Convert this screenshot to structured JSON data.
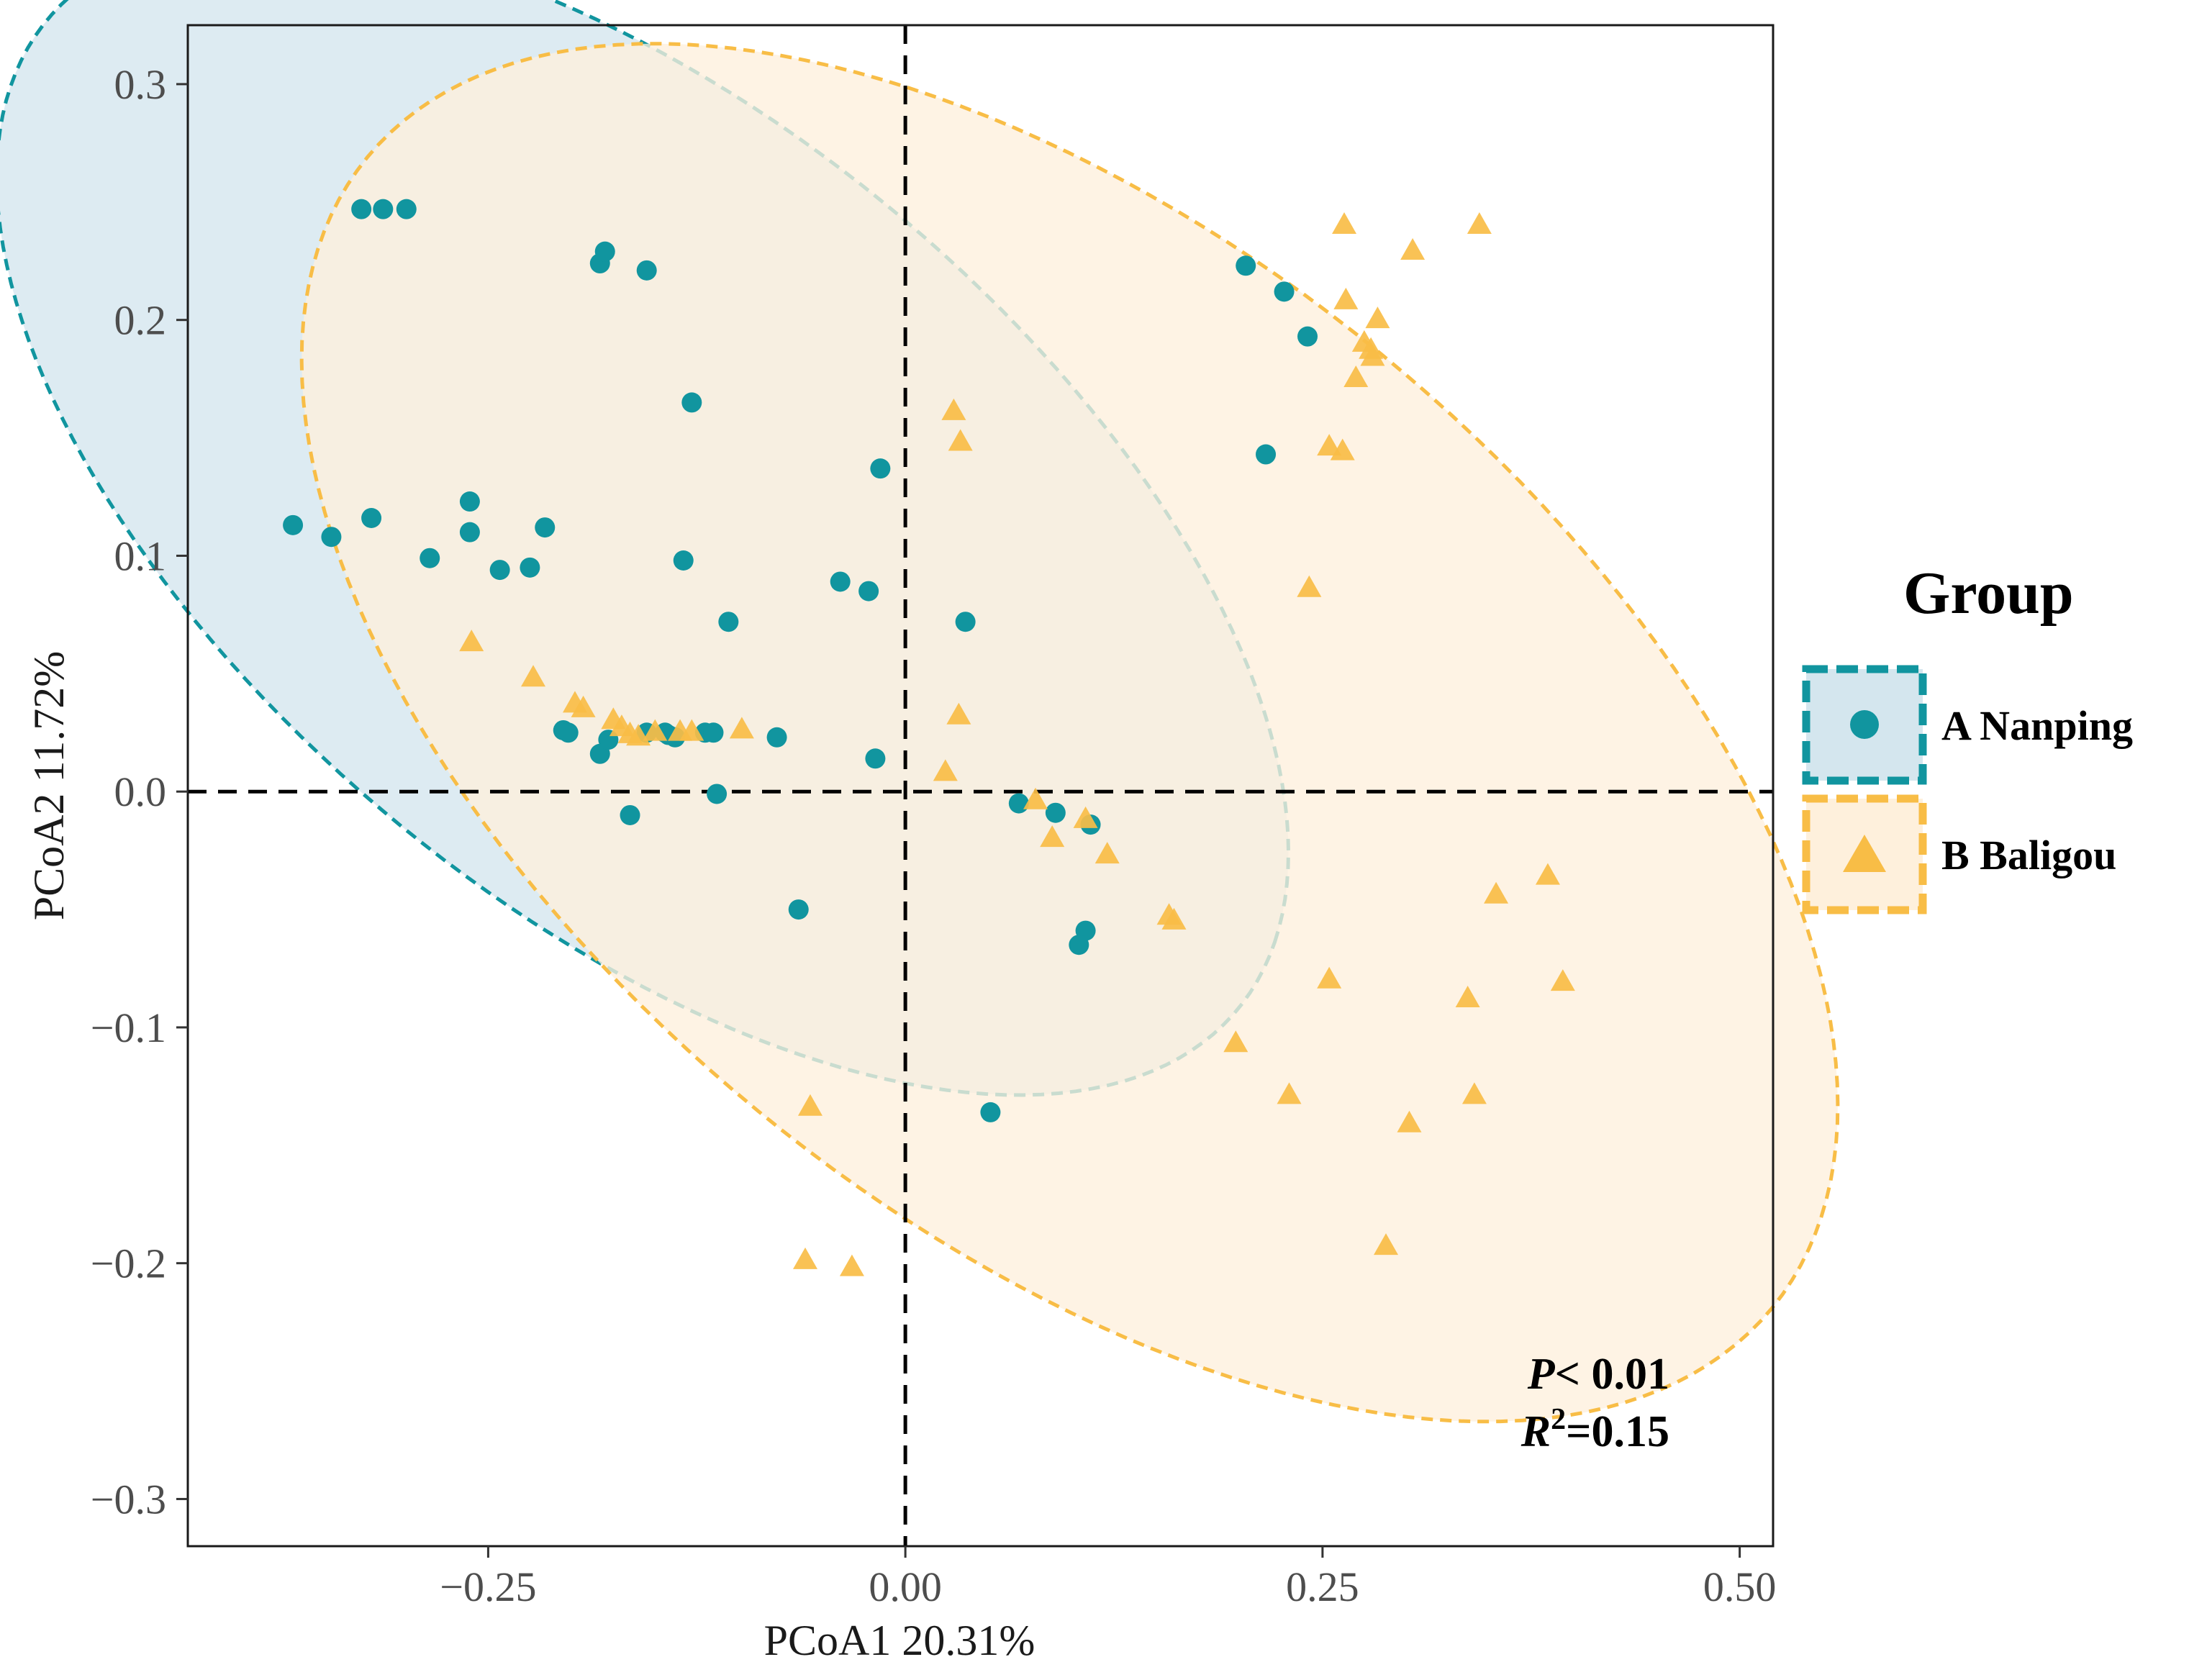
{
  "chart_data": {
    "type": "scatter",
    "title": "",
    "xlabel": "PCoA1 20.31%",
    "ylabel": "PCoA2 11.72%",
    "xlim": [
      -0.43,
      0.52
    ],
    "ylim": [
      -0.32,
      0.325
    ],
    "x_ticks": [
      -0.25,
      0.0,
      0.25,
      0.5
    ],
    "x_tick_labels": [
      "−0.25",
      "0.00",
      "0.25",
      "0.50"
    ],
    "y_ticks": [
      -0.3,
      -0.2,
      -0.1,
      0.0,
      0.1,
      0.2,
      0.3
    ],
    "y_tick_labels": [
      "−0.3",
      "−0.2",
      "−0.1",
      "0.0",
      "0.1",
      "0.2",
      "0.3"
    ],
    "grid": false,
    "reference_lines": {
      "x": 0,
      "y": 0,
      "style": "dashed"
    },
    "legend": {
      "title": "Group",
      "position": "right",
      "entries": [
        {
          "label": "A Nanping",
          "shape": "circle",
          "color": "#11959f"
        },
        {
          "label": "B Baligou",
          "shape": "triangle",
          "color": "#f8bd46"
        }
      ]
    },
    "annotations": {
      "p_prefix": "P",
      "p_suffix": "< 0.01",
      "r2_prefix": "R",
      "r2_exponent": "2",
      "r2_suffix": "=0.15"
    },
    "series": [
      {
        "name": "A Nanping",
        "shape": "circle",
        "color": "#11959f",
        "ellipse": {
          "cx": -0.1575,
          "cy": 0.1175,
          "rx": 0.42,
          "ry": 0.1845,
          "angle_deg": -25.6,
          "fill": "#d4e6ee",
          "stroke": "#11959f"
        },
        "points": [
          [
            -0.326,
            0.247
          ],
          [
            -0.313,
            0.247
          ],
          [
            -0.299,
            0.247
          ],
          [
            -0.183,
            0.224
          ],
          [
            -0.18,
            0.229
          ],
          [
            -0.155,
            0.221
          ],
          [
            -0.128,
            0.165
          ],
          [
            -0.367,
            0.113
          ],
          [
            -0.344,
            0.108
          ],
          [
            -0.32,
            0.116
          ],
          [
            -0.285,
            0.099
          ],
          [
            -0.261,
            0.123
          ],
          [
            -0.261,
            0.11
          ],
          [
            -0.243,
            0.094
          ],
          [
            -0.225,
            0.095
          ],
          [
            -0.216,
            0.112
          ],
          [
            -0.205,
            0.026
          ],
          [
            -0.202,
            0.025
          ],
          [
            -0.183,
            0.016
          ],
          [
            -0.178,
            0.022
          ],
          [
            -0.155,
            0.025
          ],
          [
            -0.144,
            0.025
          ],
          [
            -0.142,
            0.024
          ],
          [
            -0.138,
            0.023
          ],
          [
            -0.12,
            0.025
          ],
          [
            -0.115,
            0.025
          ],
          [
            -0.113,
            -0.001
          ],
          [
            -0.077,
            0.023
          ],
          [
            -0.165,
            -0.01
          ],
          [
            -0.015,
            0.137
          ],
          [
            -0.133,
            0.098
          ],
          [
            -0.106,
            0.072
          ],
          [
            -0.039,
            0.089
          ],
          [
            -0.022,
            0.085
          ],
          [
            -0.018,
            0.014
          ],
          [
            0.036,
            0.072
          ],
          [
            -0.064,
            -0.05
          ],
          [
            0.051,
            -0.136
          ],
          [
            0.068,
            -0.005
          ],
          [
            0.09,
            -0.009
          ],
          [
            0.111,
            -0.014
          ],
          [
            0.108,
            -0.059
          ],
          [
            0.104,
            -0.065
          ],
          [
            0.204,
            0.223
          ],
          [
            0.227,
            0.212
          ],
          [
            0.241,
            0.193
          ],
          [
            0.216,
            0.143
          ]
        ]
      },
      {
        "name": "B Baligou",
        "shape": "triangle",
        "color": "#f8bd46",
        "ellipse": {
          "cx": 0.0985,
          "cy": 0.025,
          "rx": 0.495,
          "ry": 0.2285,
          "angle_deg": -24.5,
          "fill": "#fef0dc",
          "stroke": "#f8bd46"
        },
        "points": [
          [
            -0.26,
            0.063
          ],
          [
            -0.223,
            0.048
          ],
          [
            -0.198,
            0.037
          ],
          [
            -0.193,
            0.035
          ],
          [
            -0.175,
            0.03
          ],
          [
            -0.17,
            0.027
          ],
          [
            -0.165,
            0.024
          ],
          [
            -0.16,
            0.023
          ],
          [
            -0.15,
            0.025
          ],
          [
            -0.135,
            0.025
          ],
          [
            -0.128,
            0.025
          ],
          [
            -0.098,
            0.026
          ],
          [
            0.029,
            0.161
          ],
          [
            0.033,
            0.148
          ],
          [
            0.032,
            0.032
          ],
          [
            0.024,
            0.008
          ],
          [
            -0.057,
            -0.134
          ],
          [
            -0.06,
            -0.199
          ],
          [
            -0.032,
            -0.202
          ],
          [
            0.078,
            -0.004
          ],
          [
            0.088,
            -0.02
          ],
          [
            0.108,
            -0.012
          ],
          [
            0.121,
            -0.027
          ],
          [
            0.158,
            -0.053
          ],
          [
            0.161,
            -0.055
          ],
          [
            0.198,
            -0.107
          ],
          [
            0.23,
            -0.129
          ],
          [
            0.254,
            -0.08
          ],
          [
            0.263,
            0.24
          ],
          [
            0.304,
            0.229
          ],
          [
            0.344,
            0.24
          ],
          [
            0.264,
            0.208
          ],
          [
            0.283,
            0.2
          ],
          [
            0.275,
            0.19
          ],
          [
            0.279,
            0.187
          ],
          [
            0.28,
            0.184
          ],
          [
            0.27,
            0.175
          ],
          [
            0.254,
            0.146
          ],
          [
            0.262,
            0.144
          ],
          [
            0.242,
            0.086
          ],
          [
            0.288,
            -0.193
          ],
          [
            0.302,
            -0.141
          ],
          [
            0.337,
            -0.088
          ],
          [
            0.341,
            -0.129
          ],
          [
            0.354,
            -0.044
          ],
          [
            0.385,
            -0.036
          ],
          [
            0.394,
            -0.081
          ]
        ]
      }
    ]
  }
}
